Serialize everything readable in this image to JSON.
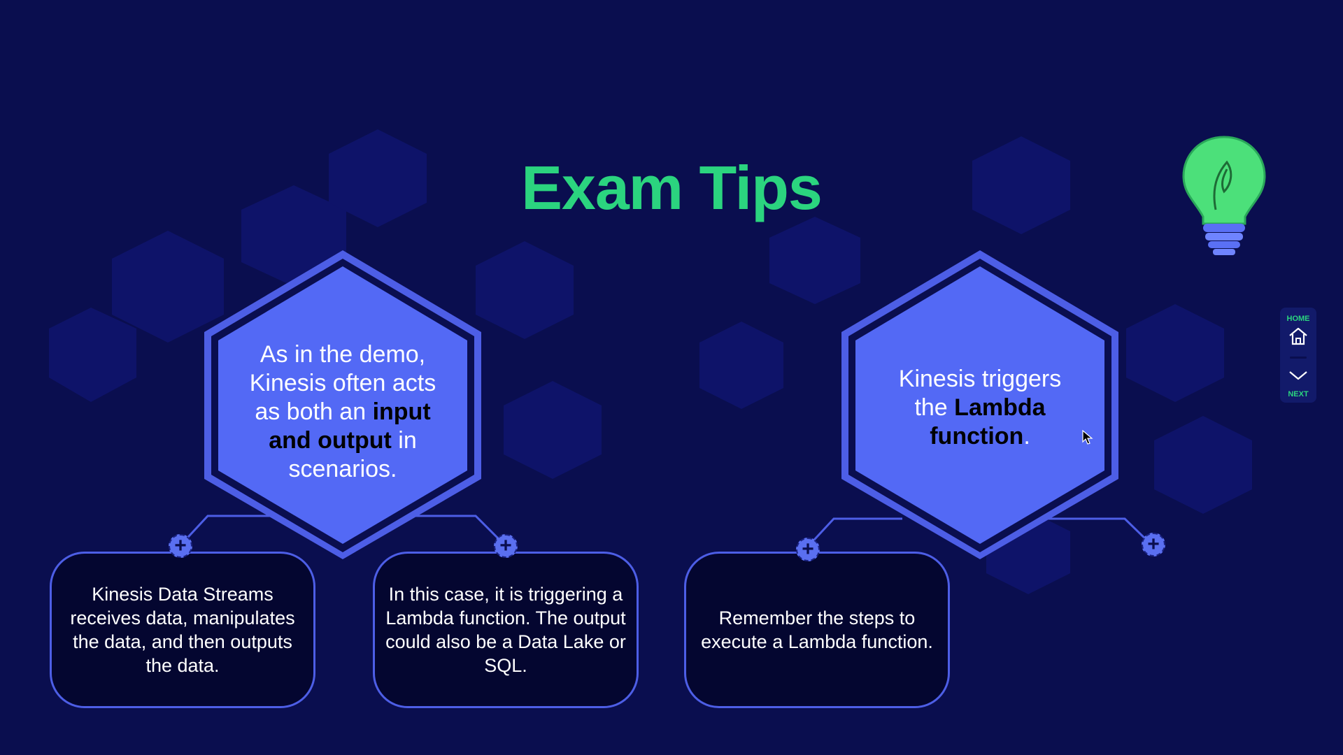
{
  "slide": {
    "title": "Exam Tips",
    "hex_left": {
      "line1": "As in the demo,",
      "line2": "Kinesis often acts",
      "line3_prefix": "as both an ",
      "line3_bold": "input",
      "line4_bold": "and output",
      "line4_suffix": " in",
      "line5": "scenarios."
    },
    "hex_right": {
      "line1": "Kinesis triggers",
      "line2_prefix": "the ",
      "line2_bold": "Lambda",
      "line3_bold": "function",
      "line3_suffix": "."
    },
    "cards": {
      "card1": "Kinesis Data Streams receives data, manipulates the data, and then outputs the data.",
      "card2": "In this case, it is triggering a Lambda function. The output could also be a Data Lake or SQL.",
      "card3": "Remember the steps to execute a Lambda function."
    },
    "expand_symbol": "+"
  },
  "nav": {
    "home_label": "HOME",
    "next_label": "NEXT",
    "home_icon": "home-icon",
    "next_icon": "chevron-down-icon"
  },
  "decor": {
    "lightbulb_icon": "lightbulb-icon"
  },
  "colors": {
    "background": "#0a0e4f",
    "title": "#2bd47f",
    "hex_fill": "#5369f5",
    "hex_border": "#4d5ee6",
    "card_bg": "#040630",
    "accent_green": "#2bd47f"
  }
}
